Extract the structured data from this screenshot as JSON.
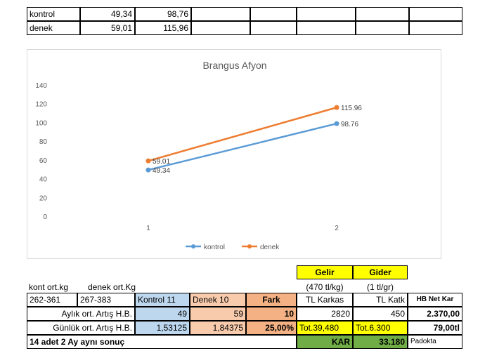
{
  "top_table": {
    "rows": [
      {
        "label": "kontrol",
        "v1": "49,34",
        "v2": "98,76"
      },
      {
        "label": "denek",
        "v1": "59,01",
        "v2": "115,96"
      }
    ]
  },
  "chart_data": {
    "type": "line",
    "title": "Brangus Afyon",
    "x": [
      1,
      2
    ],
    "categories": [
      "1",
      "2"
    ],
    "ylim": [
      0,
      140
    ],
    "yticks": [
      0,
      20,
      40,
      60,
      80,
      100,
      120,
      140
    ],
    "grid": false,
    "legend": "bottom",
    "series": [
      {
        "name": "kontrol",
        "values": [
          49.34,
          98.76
        ],
        "labels": [
          "49.34",
          "98.76"
        ],
        "color": "#5b9bd5"
      },
      {
        "name": "denek",
        "values": [
          59.01,
          115.96
        ],
        "labels": [
          "59.01",
          "115.96"
        ],
        "color": "#ed7d31"
      }
    ]
  },
  "summary": {
    "gelir": "Gelir",
    "gider": "Gider",
    "kont_label": "kont ort.kg",
    "denek_label": "denek ort.Kg",
    "gelir_unit": "(470 tl/kg)",
    "gider_unit": "(1 tl/gr)",
    "range1": "262-361",
    "range2": "267-383",
    "kontrol_head": "Kontrol 11",
    "denek_head": "Denek 10",
    "fark_head": "Fark",
    "tl_karkas": "TL Karkas",
    "tl_katk": "TL Katk",
    "hb_net_kar": "HB Net Kar",
    "aylik_label": "Aylık ort. Artış H.B.",
    "aylik_kontrol": "49",
    "aylik_denek": "59",
    "aylik_fark": "10",
    "aylik_karkas": "2820",
    "aylik_katk": "450",
    "aylik_net": "2.370,00",
    "gunluk_label": "Günlük ort. Artış H.B.",
    "gunluk_kontrol": "1,53125",
    "gunluk_denek": "1,84375",
    "gunluk_fark": "25,00%",
    "gunluk_gelir": "Tot.39,480",
    "gunluk_gider": "Tot.6.300",
    "gunluk_net": "79,00tl",
    "footer_note": "14 adet 2 Ay aynı sonuç",
    "kar_label": "KAR",
    "kar_value": "33.180",
    "padokta": "Padokta"
  }
}
